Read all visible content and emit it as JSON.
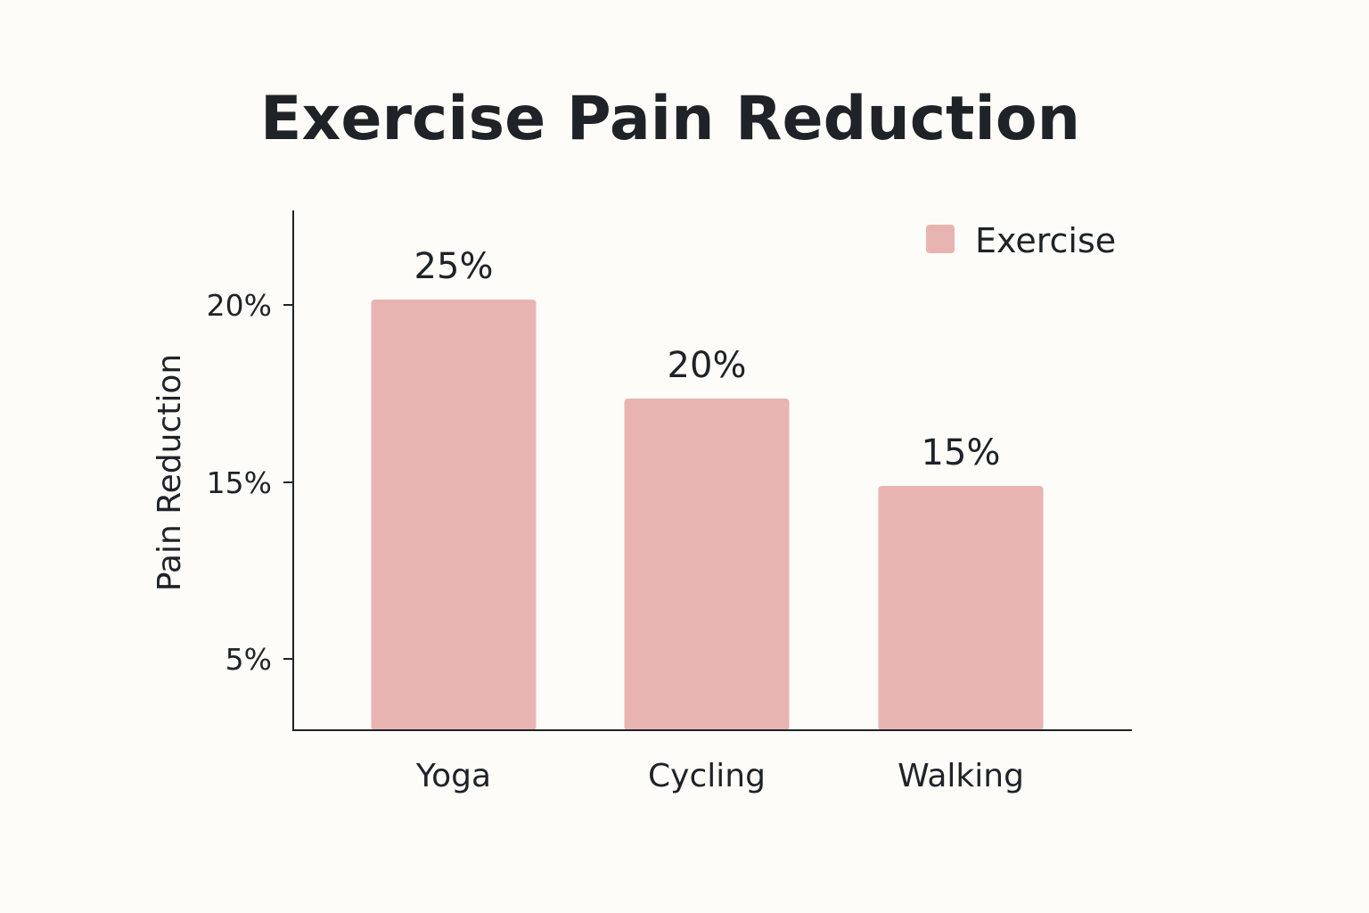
{
  "chart_data": {
    "type": "bar",
    "title": "Exercise Pain Reduction",
    "ylabel": "Pain Reduction",
    "xlabel": "",
    "categories": [
      "Yoga",
      "Cycling",
      "Walking"
    ],
    "series": [
      {
        "name": "Exercise",
        "values": [
          25,
          20,
          15
        ],
        "value_labels": [
          "25%",
          "20%",
          "15%"
        ],
        "color": "#e8b4b2"
      }
    ],
    "y_ticks": [
      {
        "value": 5,
        "label": "5%"
      },
      {
        "value": 15,
        "label": "15%"
      },
      {
        "value": 20,
        "label": "20%"
      }
    ],
    "legend_position": "top-right",
    "grid": false,
    "axis_color": "#1f2328",
    "background": "#fdfcf8"
  }
}
